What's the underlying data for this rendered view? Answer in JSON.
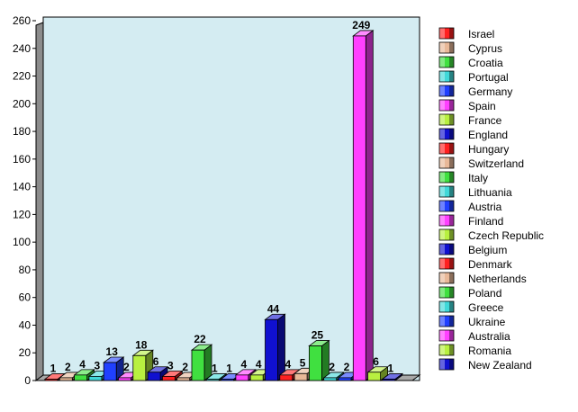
{
  "chart_data": {
    "type": "bar",
    "title": "",
    "xlabel": "",
    "ylabel": "",
    "ylim": [
      0,
      260
    ],
    "yticks": [
      0,
      20,
      40,
      60,
      80,
      100,
      120,
      140,
      160,
      180,
      200,
      220,
      240,
      260
    ],
    "grid": false,
    "legend_position": "right",
    "categories": [
      "Israel",
      "Cyprus",
      "Croatia",
      "Portugal",
      "Germany",
      "Spain",
      "France",
      "England",
      "Hungary",
      "Switzerland",
      "Italy",
      "Lithuania",
      "Austria",
      "Finland",
      "Czech Republic",
      "Belgium",
      "Denmark",
      "Netherlands",
      "Poland",
      "Greece",
      "Ukraine",
      "Australia",
      "Romania",
      "New Zealand"
    ],
    "values": [
      1,
      2,
      4,
      3,
      13,
      2,
      18,
      6,
      3,
      2,
      22,
      1,
      1,
      4,
      4,
      44,
      4,
      5,
      25,
      2,
      2,
      249,
      6,
      1
    ],
    "colors": [
      "#ff2020",
      "#e8b898",
      "#40e040",
      "#40d8d8",
      "#2040ff",
      "#ff40ff",
      "#b8f040",
      "#1010d0",
      "#ff2020",
      "#e8b898",
      "#40e040",
      "#40d8d8",
      "#2040ff",
      "#ff40ff",
      "#b8f040",
      "#1010d0",
      "#ff2020",
      "#e8b898",
      "#40e040",
      "#40d8d8",
      "#2040ff",
      "#ff40ff",
      "#b8f040",
      "#1010d0"
    ]
  }
}
